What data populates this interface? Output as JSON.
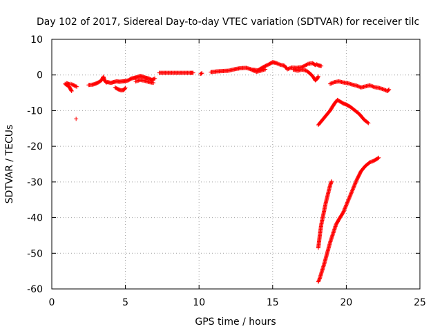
{
  "chart_data": {
    "type": "scatter",
    "title": "Day 102 of 2017, Sidereal Day-to-day VTEC variation (SDTVAR) for receiver tilc",
    "xlabel": "GPS time / hours",
    "ylabel": "SDTVAR / TECUs",
    "xlim": [
      0,
      25
    ],
    "ylim": [
      -60,
      10
    ],
    "xticks": [
      0,
      5,
      10,
      15,
      20,
      25
    ],
    "yticks": [
      -60,
      -50,
      -40,
      -30,
      -20,
      -10,
      0,
      10
    ],
    "grid": true,
    "marker": "+",
    "color": "#ff0000",
    "series": [
      {
        "name": "SDTVAR",
        "segments": [
          {
            "x": [
              0.9,
              1.0,
              1.1,
              1.2,
              1.25,
              1.3,
              1.35
            ],
            "y": [
              -2.5,
              -2.8,
              -3.0,
              -3.4,
              -3.8,
              -4.2,
              -4.5
            ]
          },
          {
            "x": [
              1.0,
              1.2
            ],
            "y": [
              -2.3,
              -2.6
            ]
          },
          {
            "x": [
              1.3,
              1.7
            ],
            "y": [
              -2.5,
              -3.3
            ]
          },
          {
            "x": [
              1.65
            ],
            "y": [
              -12.3
            ]
          },
          {
            "x": [
              2.5,
              2.8,
              3.0,
              3.2,
              3.4,
              3.5,
              3.6,
              3.7,
              3.8,
              4.0,
              4.2,
              4.4,
              4.6,
              4.8,
              5.0,
              5.2,
              5.4,
              5.6,
              5.8,
              6.0,
              6.2,
              6.4,
              6.6,
              6.8,
              7.0
            ],
            "y": [
              -2.8,
              -2.7,
              -2.4,
              -2.0,
              -1.4,
              -0.5,
              -1.6,
              -2.1,
              -2.0,
              -2.2,
              -2.0,
              -1.8,
              -1.9,
              -1.8,
              -1.7,
              -1.5,
              -1.0,
              -0.8,
              -0.6,
              -0.3,
              -0.5,
              -0.8,
              -1.0,
              -1.4,
              -1.0
            ]
          },
          {
            "x": [
              4.3,
              4.5,
              4.7,
              4.9,
              5.0
            ],
            "y": [
              -3.5,
              -4.0,
              -4.3,
              -4.2,
              -3.6
            ]
          },
          {
            "x": [
              5.7,
              6.0,
              6.3,
              6.6,
              6.9
            ],
            "y": [
              -1.8,
              -1.4,
              -1.6,
              -2.0,
              -2.2
            ]
          },
          {
            "x": [
              7.3,
              7.6,
              7.9,
              8.2,
              8.5,
              8.8,
              9.1,
              9.4,
              9.6
            ],
            "y": [
              0.6,
              0.6,
              0.6,
              0.6,
              0.6,
              0.6,
              0.6,
              0.6,
              0.6
            ]
          },
          {
            "x": [
              10.1,
              10.2
            ],
            "y": [
              0.3,
              0.5
            ]
          },
          {
            "x": [
              10.8,
              11.2,
              11.6,
              12.0,
              12.4,
              12.8,
              13.2,
              13.6,
              14.0,
              14.4,
              14.8,
              15.0,
              15.2,
              15.5,
              15.8,
              16.0,
              16.3,
              16.6,
              17.0,
              17.4,
              17.7,
              17.9,
              18.0,
              18.1,
              18.3
            ],
            "y": [
              0.8,
              1.0,
              1.1,
              1.2,
              1.6,
              1.9,
              2.0,
              1.5,
              1.3,
              2.3,
              3.1,
              3.6,
              3.4,
              2.9,
              2.6,
              1.6,
              2.1,
              2.0,
              2.2,
              3.1,
              3.3,
              2.8,
              3.0,
              2.7,
              2.5
            ]
          },
          {
            "x": [
              13.6,
              13.9,
              14.2,
              14.5
            ],
            "y": [
              1.4,
              0.9,
              1.2,
              1.6
            ]
          },
          {
            "x": [
              16.4,
              16.7,
              17.0,
              17.3,
              17.6,
              17.8,
              17.9,
              18.0,
              18.1
            ],
            "y": [
              1.5,
              1.2,
              1.5,
              1.2,
              0.2,
              -0.8,
              -1.5,
              -1.2,
              -0.4
            ]
          },
          {
            "x": [
              18.1,
              18.3,
              18.6,
              18.9,
              19.2,
              19.4,
              19.6,
              19.8,
              20.0,
              20.3,
              20.6,
              20.9,
              21.2,
              21.5
            ],
            "y": [
              -14.0,
              -13.0,
              -11.5,
              -10.0,
              -8.0,
              -7.0,
              -7.5,
              -8.0,
              -8.3,
              -9.0,
              -10.0,
              -11.0,
              -12.5,
              -13.5
            ]
          },
          {
            "x": [
              18.9,
              19.2,
              19.5,
              19.8,
              20.1,
              20.4,
              20.7,
              21.0,
              21.3,
              21.6,
              21.9,
              22.2,
              22.5,
              22.8,
              22.9
            ],
            "y": [
              -2.5,
              -2.0,
              -1.8,
              -2.1,
              -2.3,
              -2.7,
              -3.0,
              -3.5,
              -3.2,
              -2.9,
              -3.4,
              -3.6,
              -4.0,
              -4.5,
              -4.1
            ]
          },
          {
            "x": [
              18.1,
              18.2,
              18.3,
              18.45,
              18.6,
              18.75,
              18.9,
              19.0
            ],
            "y": [
              -48.5,
              -45.0,
              -42.0,
              -39.0,
              -36.0,
              -33.5,
              -31.0,
              -29.8
            ]
          },
          {
            "x": [
              18.1,
              18.2,
              18.35,
              18.5,
              18.7,
              18.9,
              19.1,
              19.3,
              19.5,
              19.8,
              20.1,
              20.4,
              20.7,
              21.0,
              21.3,
              21.6,
              21.9,
              22.1,
              22.2
            ],
            "y": [
              -58.0,
              -57.0,
              -55.0,
              -53.0,
              -50.0,
              -47.0,
              -44.5,
              -42.0,
              -40.5,
              -38.5,
              -35.5,
              -32.5,
              -29.5,
              -27.0,
              -25.5,
              -24.5,
              -24.0,
              -23.5,
              -23.2
            ]
          }
        ]
      }
    ]
  }
}
